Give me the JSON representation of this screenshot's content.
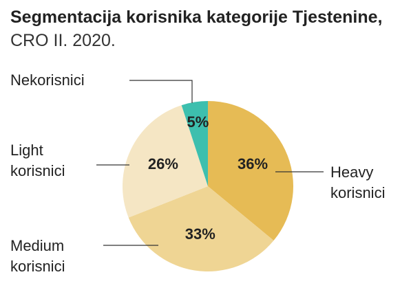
{
  "chart_data": {
    "type": "pie",
    "title": "Segmentacija korisnika kategorije Tjestenine,",
    "subtitle": "CRO II. 2020.",
    "categories": [
      "Heavy korisnici",
      "Medium korisnici",
      "Light korisnici",
      "Nekorisnici"
    ],
    "values": [
      36,
      33,
      26,
      5
    ],
    "value_labels": [
      "36%",
      "33%",
      "26%",
      "5%"
    ],
    "colors": [
      "#e6bb55",
      "#efd594",
      "#f5e6c4",
      "#3dbfae"
    ]
  }
}
